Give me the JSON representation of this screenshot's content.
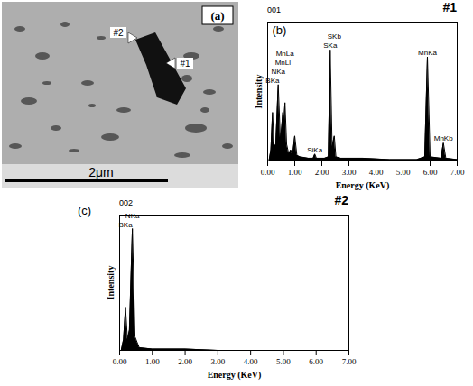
{
  "image": {
    "panel": "(a)",
    "markers": [
      "#2",
      "#1"
    ],
    "scale_bar": "2μm"
  },
  "chart_data": [
    {
      "type": "area",
      "panel": "(b)",
      "title": "#1",
      "subtitle": "001",
      "x_label": "Energy (KeV)",
      "y_label": "Intensity",
      "x": [
        0.05,
        0.12,
        0.18,
        0.24,
        0.3,
        0.39,
        0.47,
        0.52,
        0.56,
        0.6,
        0.64,
        0.7,
        0.78,
        0.85,
        0.92,
        1.0,
        1.08,
        1.2,
        1.5,
        1.68,
        1.74,
        1.8,
        2.1,
        2.24,
        2.31,
        2.38,
        2.42,
        2.46,
        2.52,
        2.7,
        3.5,
        4.5,
        5.5,
        5.8,
        5.9,
        6.0,
        6.4,
        6.49,
        6.58,
        7.0
      ],
      "values": [
        0,
        8,
        35,
        10,
        12,
        55,
        15,
        25,
        35,
        28,
        42,
        12,
        5,
        8,
        4,
        18,
        4,
        3,
        2,
        2,
        5,
        2,
        2,
        3,
        80,
        10,
        14,
        18,
        3,
        2,
        2,
        1,
        1,
        3,
        75,
        3,
        2,
        13,
        2,
        1
      ],
      "color": "#000000",
      "xlim": [
        0,
        7
      ],
      "ylim": [
        0,
        100
      ],
      "xticks": [
        {
          "value": 0,
          "label": "0.00"
        },
        {
          "value": 1,
          "label": "1.00"
        },
        {
          "value": 2,
          "label": "2.00"
        },
        {
          "value": 3,
          "label": "3.00"
        },
        {
          "value": 4,
          "label": "4.00"
        },
        {
          "value": 5,
          "label": "5.00"
        },
        {
          "value": 6,
          "label": "6.00"
        },
        {
          "value": 7,
          "label": "7.00"
        }
      ],
      "yticks": [],
      "tick_labels": "x",
      "annotations": [
        {
          "text": "BKa",
          "x": 0.18
        },
        {
          "text": "NKa",
          "x": 0.39
        },
        {
          "text": "MnLl",
          "x": 0.56
        },
        {
          "text": "MnLa",
          "x": 0.64
        },
        {
          "text": "SiKa",
          "x": 1.74
        },
        {
          "text": "SKa",
          "x": 2.31
        },
        {
          "text": "SKb",
          "x": 2.46
        },
        {
          "text": "MnKa",
          "x": 5.9
        },
        {
          "text": "MnKb",
          "x": 6.49
        }
      ]
    },
    {
      "type": "area",
      "panel": "(c)",
      "title": "#2",
      "subtitle": "002",
      "x_label": "Energy (KeV)",
      "y_label": "Intensity",
      "x": [
        0.05,
        0.12,
        0.18,
        0.24,
        0.3,
        0.39,
        0.47,
        0.6,
        1.0,
        2.0,
        3.0,
        4.0,
        5.0,
        6.0,
        7.0
      ],
      "values": [
        0,
        8,
        32,
        8,
        15,
        90,
        10,
        2,
        1,
        1,
        0,
        0,
        0,
        0,
        0
      ],
      "color": "#000000",
      "xlim": [
        0,
        7
      ],
      "ylim": [
        0,
        100
      ],
      "xticks": [
        {
          "value": 0,
          "label": "0.00"
        },
        {
          "value": 1,
          "label": "1.00"
        },
        {
          "value": 2,
          "label": "2.00"
        },
        {
          "value": 3,
          "label": "3.00"
        },
        {
          "value": 4,
          "label": "4.00"
        },
        {
          "value": 5,
          "label": "5.00"
        },
        {
          "value": 6,
          "label": "6.00"
        },
        {
          "value": 7,
          "label": "7.00"
        }
      ],
      "yticks": [],
      "tick_labels": "x",
      "annotations": [
        {
          "text": "BKa",
          "x": 0.18
        },
        {
          "text": "NKa",
          "x": 0.39
        }
      ]
    }
  ]
}
